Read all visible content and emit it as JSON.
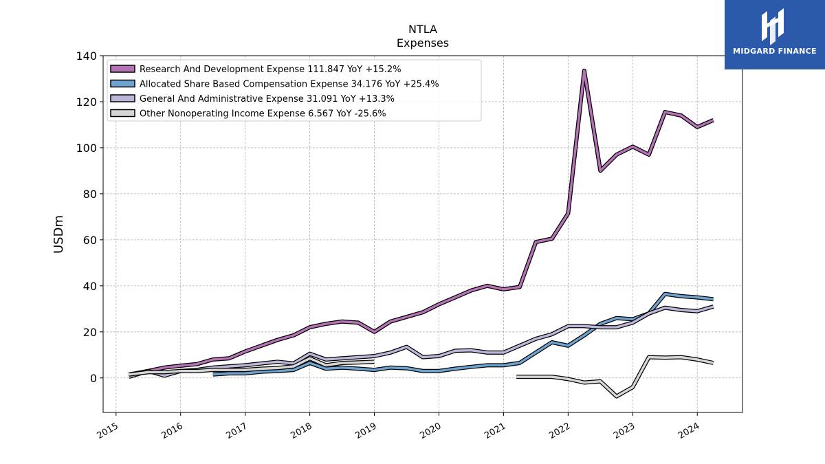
{
  "chart_data": {
    "type": "line",
    "title": "NTLA",
    "subtitle": "Expenses",
    "ylabel": "USDm",
    "xlabel": "",
    "ylim": [
      -15,
      140
    ],
    "xlim": [
      2014.8,
      2024.7
    ],
    "yticks": [
      0,
      20,
      40,
      60,
      80,
      100,
      120,
      140
    ],
    "xticks": [
      "2015",
      "2016",
      "2017",
      "2018",
      "2019",
      "2020",
      "2021",
      "2022",
      "2023",
      "2024"
    ],
    "grid": true,
    "legend_position": "top-left",
    "series": [
      {
        "name": "Research And Development Expense  111.847 YoY +15.2%",
        "color": "#b473b4",
        "points": [
          [
            2015.2,
            1.5
          ],
          [
            2015.5,
            3
          ],
          [
            2015.75,
            4.5
          ],
          [
            2016.0,
            5.3
          ],
          [
            2016.25,
            6
          ],
          [
            2016.5,
            8
          ],
          [
            2016.75,
            8.5
          ],
          [
            2017.0,
            11.5
          ],
          [
            2017.25,
            14
          ],
          [
            2017.5,
            16.5
          ],
          [
            2017.75,
            18.5
          ],
          [
            2018.0,
            22
          ],
          [
            2018.25,
            23.5
          ],
          [
            2018.5,
            24.5
          ],
          [
            2018.75,
            24
          ],
          [
            2019.0,
            20
          ],
          [
            2019.25,
            24.5
          ],
          [
            2019.5,
            26.5
          ],
          [
            2019.75,
            28.5
          ],
          [
            2020.0,
            32
          ],
          [
            2020.25,
            35
          ],
          [
            2020.5,
            38
          ],
          [
            2020.75,
            40
          ],
          [
            2021.0,
            38.5
          ],
          [
            2021.25,
            39.5
          ],
          [
            2021.5,
            59
          ],
          [
            2021.75,
            60.5
          ],
          [
            2022.0,
            71.5
          ],
          [
            2022.25,
            133.5
          ],
          [
            2022.5,
            90
          ],
          [
            2022.75,
            97
          ],
          [
            2023.0,
            100.5
          ],
          [
            2023.25,
            97
          ],
          [
            2023.5,
            115.5
          ],
          [
            2023.75,
            114
          ],
          [
            2024.0,
            109
          ],
          [
            2024.25,
            112
          ]
        ]
      },
      {
        "name": "Allocated Share Based Compensation Expense  34.176 YoY +25.4%",
        "color": "#6fa3cf",
        "points": [
          [
            2016.5,
            1.5
          ],
          [
            2016.75,
            2
          ],
          [
            2017.0,
            2
          ],
          [
            2017.25,
            2.7
          ],
          [
            2017.5,
            3
          ],
          [
            2017.75,
            3.5
          ],
          [
            2018.0,
            6.5
          ],
          [
            2018.25,
            4
          ],
          [
            2018.5,
            4.5
          ],
          [
            2018.75,
            4
          ],
          [
            2019.0,
            3.5
          ],
          [
            2019.25,
            4.5
          ],
          [
            2019.5,
            4.2
          ],
          [
            2019.75,
            3
          ],
          [
            2020.0,
            3
          ],
          [
            2020.25,
            4
          ],
          [
            2020.5,
            4.8
          ],
          [
            2020.75,
            5.5
          ],
          [
            2021.0,
            5.5
          ],
          [
            2021.25,
            6.5
          ],
          [
            2021.5,
            11
          ],
          [
            2021.75,
            15.5
          ],
          [
            2022.0,
            14
          ],
          [
            2022.25,
            18.5
          ],
          [
            2022.5,
            23.5
          ],
          [
            2022.75,
            26
          ],
          [
            2023.0,
            25.5
          ],
          [
            2023.25,
            28
          ],
          [
            2023.5,
            36.5
          ],
          [
            2023.75,
            35.5
          ],
          [
            2024.0,
            35
          ],
          [
            2024.25,
            34.2
          ]
        ]
      },
      {
        "name": "General And Administrative Expense  31.091 YoY +13.3%",
        "color": "#bdb6d9",
        "points": [
          [
            2015.2,
            0.5
          ],
          [
            2015.5,
            3
          ],
          [
            2015.75,
            1
          ],
          [
            2016.0,
            3
          ],
          [
            2016.25,
            3.5
          ],
          [
            2016.5,
            4.5
          ],
          [
            2016.75,
            5
          ],
          [
            2017.0,
            5.5
          ],
          [
            2017.25,
            6.3
          ],
          [
            2017.5,
            7
          ],
          [
            2017.75,
            6.3
          ],
          [
            2018.0,
            10.5
          ],
          [
            2018.25,
            8
          ],
          [
            2018.5,
            8.5
          ],
          [
            2018.75,
            9
          ],
          [
            2019.0,
            9.5
          ],
          [
            2019.25,
            11
          ],
          [
            2019.5,
            13.5
          ],
          [
            2019.75,
            9
          ],
          [
            2020.0,
            9.5
          ],
          [
            2020.25,
            11.8
          ],
          [
            2020.5,
            12
          ],
          [
            2020.75,
            11
          ],
          [
            2021.0,
            11
          ],
          [
            2021.25,
            14
          ],
          [
            2021.5,
            17
          ],
          [
            2021.75,
            19
          ],
          [
            2022.0,
            22.5
          ],
          [
            2022.25,
            22.5
          ],
          [
            2022.5,
            22
          ],
          [
            2022.75,
            22
          ],
          [
            2023.0,
            24
          ],
          [
            2023.25,
            28
          ],
          [
            2023.5,
            30.5
          ],
          [
            2023.75,
            29.5
          ],
          [
            2024.0,
            29
          ],
          [
            2024.25,
            31
          ]
        ]
      },
      {
        "name": "Other Nonoperating Income Expense  6.567 YoY -25.6%",
        "color": "#d6d6d6",
        "points": [
          [
            2015.2,
            1.5
          ],
          [
            2015.5,
            2.5
          ],
          [
            2015.75,
            2.5
          ],
          [
            2016.0,
            3
          ],
          [
            2016.25,
            3
          ],
          [
            2016.5,
            3.5
          ],
          [
            2016.75,
            3.5
          ],
          [
            2017.0,
            3.5
          ],
          [
            2017.25,
            4
          ],
          [
            2017.5,
            4.3
          ],
          [
            2017.75,
            5
          ],
          [
            2018.0,
            8.5
          ],
          [
            2018.25,
            5.5
          ],
          [
            2018.5,
            6.5
          ],
          [
            2018.75,
            6.7
          ],
          [
            2019.0,
            7
          ],
          [
            2021.2,
            0.5
          ],
          [
            2021.5,
            0.5
          ],
          [
            2021.75,
            0.5
          ],
          [
            2022.0,
            -0.5
          ],
          [
            2022.25,
            -2
          ],
          [
            2022.5,
            -1.5
          ],
          [
            2022.75,
            -8
          ],
          [
            2023.0,
            -4
          ],
          [
            2023.25,
            9
          ],
          [
            2023.5,
            8.8
          ],
          [
            2023.75,
            9
          ],
          [
            2024.0,
            8
          ],
          [
            2024.25,
            6.5
          ]
        ],
        "gap_after_x": 2019.0
      }
    ]
  },
  "logo": {
    "text": "MIDGARD FINANCE"
  }
}
